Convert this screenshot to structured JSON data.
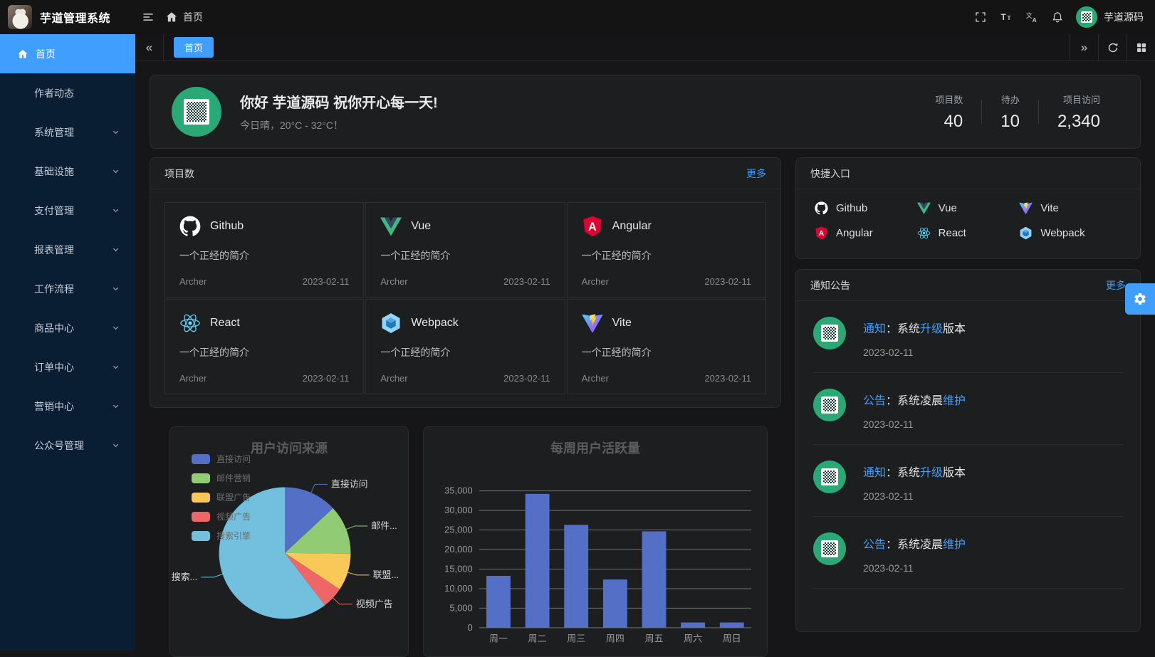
{
  "topbar": {
    "app_title": "芋道管理系统",
    "breadcrumb": "首页",
    "username": "芋道源码",
    "icons": [
      "hamburger",
      "home",
      "fullscreen",
      "font-size",
      "language",
      "notification-bell",
      "avatar"
    ]
  },
  "sidebar": {
    "items": [
      {
        "label": "首页",
        "active": true,
        "icon": "home",
        "expandable": false
      },
      {
        "label": "作者动态",
        "expandable": false
      },
      {
        "label": "系统管理",
        "expandable": true
      },
      {
        "label": "基础设施",
        "expandable": true
      },
      {
        "label": "支付管理",
        "expandable": true
      },
      {
        "label": "报表管理",
        "expandable": true
      },
      {
        "label": "工作流程",
        "expandable": true
      },
      {
        "label": "商品中心",
        "expandable": true
      },
      {
        "label": "订单中心",
        "expandable": true
      },
      {
        "label": "营销中心",
        "expandable": true
      },
      {
        "label": "公众号管理",
        "expandable": true
      }
    ]
  },
  "tabbar": {
    "tabs": [
      {
        "label": "首页",
        "active": true
      }
    ],
    "controls": [
      "collapse-left",
      "collapse-right",
      "refresh",
      "layout-grid"
    ]
  },
  "welcome": {
    "greeting": "你好 芋道源码 祝你开心每一天!",
    "weather": "今日晴，20°C - 32°C！",
    "stats": [
      {
        "label": "项目数",
        "value": "40"
      },
      {
        "label": "待办",
        "value": "10"
      },
      {
        "label": "项目访问",
        "value": "2,340"
      }
    ]
  },
  "projects": {
    "title": "项目数",
    "more_label": "更多",
    "items": [
      {
        "name": "Github",
        "icon": "github",
        "desc": "一个正经的简介",
        "author": "Archer",
        "date": "2023-02-11"
      },
      {
        "name": "Vue",
        "icon": "vue",
        "desc": "一个正经的简介",
        "author": "Archer",
        "date": "2023-02-11"
      },
      {
        "name": "Angular",
        "icon": "angular",
        "desc": "一个正经的简介",
        "author": "Archer",
        "date": "2023-02-11"
      },
      {
        "name": "React",
        "icon": "react",
        "desc": "一个正经的简介",
        "author": "Archer",
        "date": "2023-02-11"
      },
      {
        "name": "Webpack",
        "icon": "webpack",
        "desc": "一个正经的简介",
        "author": "Archer",
        "date": "2023-02-11"
      },
      {
        "name": "Vite",
        "icon": "vite",
        "desc": "一个正经的简介",
        "author": "Archer",
        "date": "2023-02-11"
      }
    ]
  },
  "quick_entry": {
    "title": "快捷入口",
    "items": [
      {
        "name": "Github",
        "icon": "github"
      },
      {
        "name": "Vue",
        "icon": "vue"
      },
      {
        "name": "Vite",
        "icon": "vite"
      },
      {
        "name": "Angular",
        "icon": "angular"
      },
      {
        "name": "React",
        "icon": "react"
      },
      {
        "name": "Webpack",
        "icon": "webpack"
      }
    ]
  },
  "notices": {
    "title": "通知公告",
    "more_label": "更多",
    "items": [
      {
        "parts": [
          {
            "text": "通知",
            "blue": true
          },
          {
            "text": "：系统"
          },
          {
            "text": "升级",
            "blue": true
          },
          {
            "text": "版本"
          }
        ],
        "date": "2023-02-11"
      },
      {
        "parts": [
          {
            "text": "公告",
            "blue": true
          },
          {
            "text": "：系统凌晨"
          },
          {
            "text": "维护",
            "blue": true
          }
        ],
        "date": "2023-02-11"
      },
      {
        "parts": [
          {
            "text": "通知",
            "blue": true
          },
          {
            "text": "：系统"
          },
          {
            "text": "升级",
            "blue": true
          },
          {
            "text": "版本"
          }
        ],
        "date": "2023-02-11"
      },
      {
        "parts": [
          {
            "text": "公告",
            "blue": true
          },
          {
            "text": "：系统凌晨"
          },
          {
            "text": "维护",
            "blue": true
          }
        ],
        "date": "2023-02-11"
      }
    ]
  },
  "chart_data": [
    {
      "type": "pie",
      "title": "用户访问来源",
      "legend_position": "top-left",
      "slices": [
        {
          "name": "直接访问",
          "value": 335,
          "color": "#5470c6",
          "label": "直接访问"
        },
        {
          "name": "邮件营销",
          "value": 310,
          "color": "#91cc75",
          "label": "邮件..."
        },
        {
          "name": "联盟广告",
          "value": 234,
          "color": "#fac858",
          "label": "联盟..."
        },
        {
          "name": "视频广告",
          "value": 135,
          "color": "#ee6666",
          "label": "视频广告"
        },
        {
          "name": "搜索引擎",
          "value": 1548,
          "color": "#73c0de",
          "label": "搜索..."
        }
      ]
    },
    {
      "type": "bar",
      "title": "每周用户活跃量",
      "categories": [
        "周一",
        "周二",
        "周三",
        "周四",
        "周五",
        "周六",
        "周日"
      ],
      "values": [
        13253,
        34235,
        26321,
        12340,
        24643,
        1322,
        1324
      ],
      "bar_color": "#5470c6",
      "ylabel": "",
      "xlabel": "",
      "ylim": [
        0,
        35000
      ],
      "ytick_step": 5000,
      "grid": true
    }
  ],
  "colors": {
    "accent": "#409eff",
    "sidebar_bg": "#0a1e33",
    "topbar_bg": "#141414",
    "content_bg": "#161618",
    "card_bg": "#1d1e20",
    "avatar_green": "#2aa876",
    "grid_line": "#d7d9e0",
    "axis_text": "#9a9a9a"
  }
}
